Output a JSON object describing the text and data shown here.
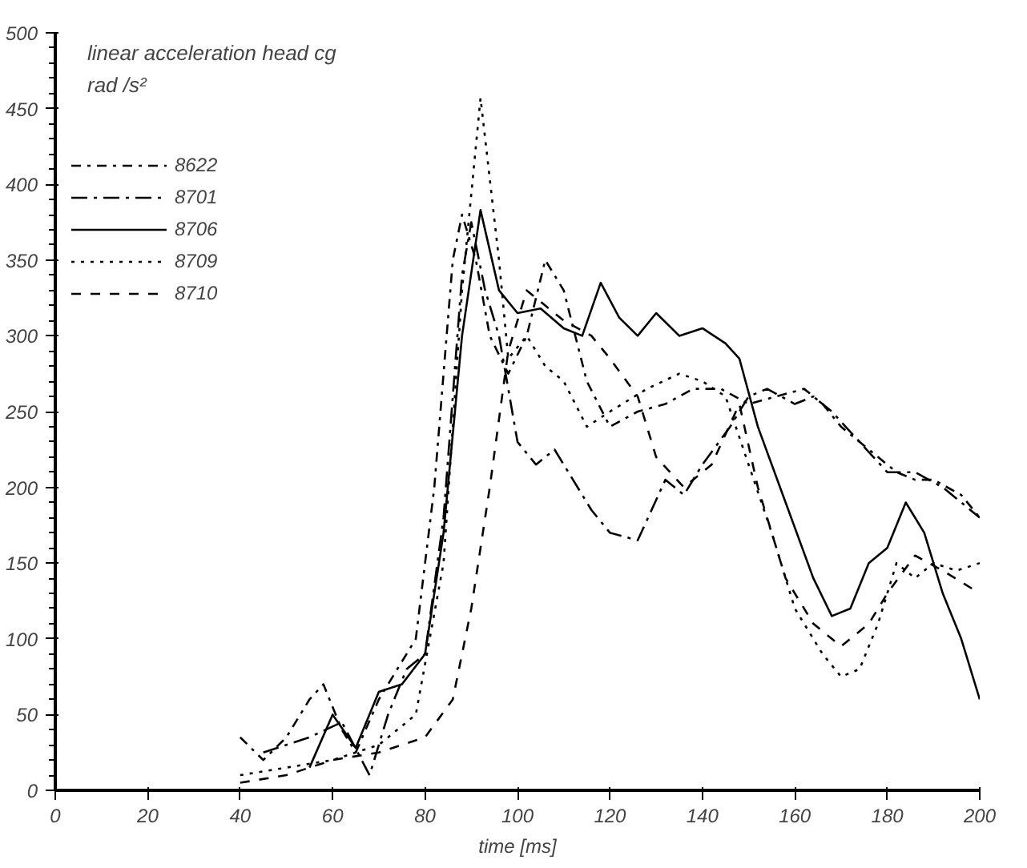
{
  "chart_data": {
    "type": "line",
    "title": "linear acceleration head cg",
    "ylabel": "rad /s²",
    "xlabel": "time [ms]",
    "xlim": [
      0,
      200
    ],
    "ylim": [
      0,
      500
    ],
    "xticks": [
      0,
      20,
      40,
      60,
      80,
      100,
      120,
      140,
      160,
      180,
      200
    ],
    "yticks": [
      0,
      50,
      100,
      150,
      200,
      250,
      300,
      350,
      400,
      450,
      500
    ],
    "grid": false,
    "legend": "top left",
    "marker": "none",
    "series": [
      {
        "name": "8622",
        "color": "#000000",
        "line_style": "dashdot",
        "x": [
          40,
          45,
          50,
          55,
          58,
          62,
          65,
          70,
          78,
          82,
          86,
          88,
          91,
          94,
          98,
          102,
          106,
          110,
          115,
          120,
          126,
          132,
          138,
          144,
          150,
          156,
          162,
          166,
          170,
          176,
          182,
          186,
          190,
          196,
          200
        ],
        "values": [
          35,
          20,
          35,
          60,
          70,
          40,
          25,
          60,
          100,
          200,
          350,
          380,
          350,
          300,
          275,
          300,
          350,
          330,
          270,
          240,
          250,
          255,
          265,
          265,
          255,
          260,
          265,
          255,
          240,
          225,
          210,
          205,
          205,
          195,
          180
        ]
      },
      {
        "name": "8701",
        "color": "#000000",
        "line_style": "longdashdot",
        "x": [
          45,
          55,
          62,
          68,
          72,
          76,
          80,
          84,
          88,
          90,
          93,
          96,
          100,
          104,
          108,
          112,
          116,
          120,
          126,
          132,
          136,
          140,
          146,
          150,
          154,
          160,
          164,
          168,
          174,
          180,
          186,
          192,
          196,
          200
        ],
        "values": [
          25,
          35,
          45,
          10,
          50,
          80,
          90,
          180,
          340,
          375,
          330,
          300,
          230,
          215,
          225,
          205,
          185,
          170,
          165,
          205,
          195,
          215,
          240,
          260,
          265,
          255,
          260,
          250,
          230,
          210,
          210,
          200,
          190,
          180
        ]
      },
      {
        "name": "8706",
        "color": "#000000",
        "line_style": "solid",
        "x": [
          55,
          60,
          65,
          70,
          75,
          80,
          84,
          88,
          92,
          96,
          100,
          105,
          110,
          114,
          118,
          122,
          126,
          130,
          135,
          140,
          145,
          148,
          152,
          158,
          164,
          168,
          172,
          176,
          180,
          184,
          188,
          192,
          196,
          200
        ],
        "values": [
          15,
          50,
          28,
          65,
          70,
          90,
          170,
          300,
          383,
          330,
          315,
          318,
          305,
          300,
          335,
          312,
          300,
          315,
          300,
          305,
          295,
          285,
          240,
          190,
          140,
          115,
          120,
          150,
          160,
          190,
          170,
          130,
          100,
          60
        ]
      },
      {
        "name": "8709",
        "color": "#000000",
        "line_style": "dotted",
        "x": [
          40,
          50,
          60,
          70,
          78,
          84,
          88,
          92,
          96,
          98,
          102,
          106,
          110,
          115,
          120,
          128,
          135,
          140,
          145,
          150,
          155,
          160,
          166,
          170,
          174,
          178,
          182,
          186,
          190,
          195,
          200
        ],
        "values": [
          10,
          15,
          20,
          30,
          50,
          150,
          330,
          457,
          350,
          285,
          300,
          280,
          270,
          240,
          250,
          265,
          275,
          270,
          260,
          215,
          170,
          120,
          90,
          75,
          80,
          110,
          150,
          140,
          150,
          145,
          150
        ]
      },
      {
        "name": "8710",
        "color": "#000000",
        "line_style": "dashed",
        "x": [
          40,
          50,
          60,
          70,
          80,
          86,
          90,
          94,
          98,
          102,
          106,
          110,
          116,
          120,
          126,
          130,
          136,
          142,
          148,
          152,
          158,
          164,
          170,
          176,
          180,
          186,
          192,
          200
        ],
        "values": [
          5,
          10,
          20,
          25,
          35,
          60,
          120,
          200,
          290,
          330,
          320,
          310,
          300,
          285,
          260,
          220,
          200,
          215,
          255,
          200,
          140,
          110,
          95,
          110,
          130,
          155,
          145,
          130
        ]
      }
    ]
  }
}
